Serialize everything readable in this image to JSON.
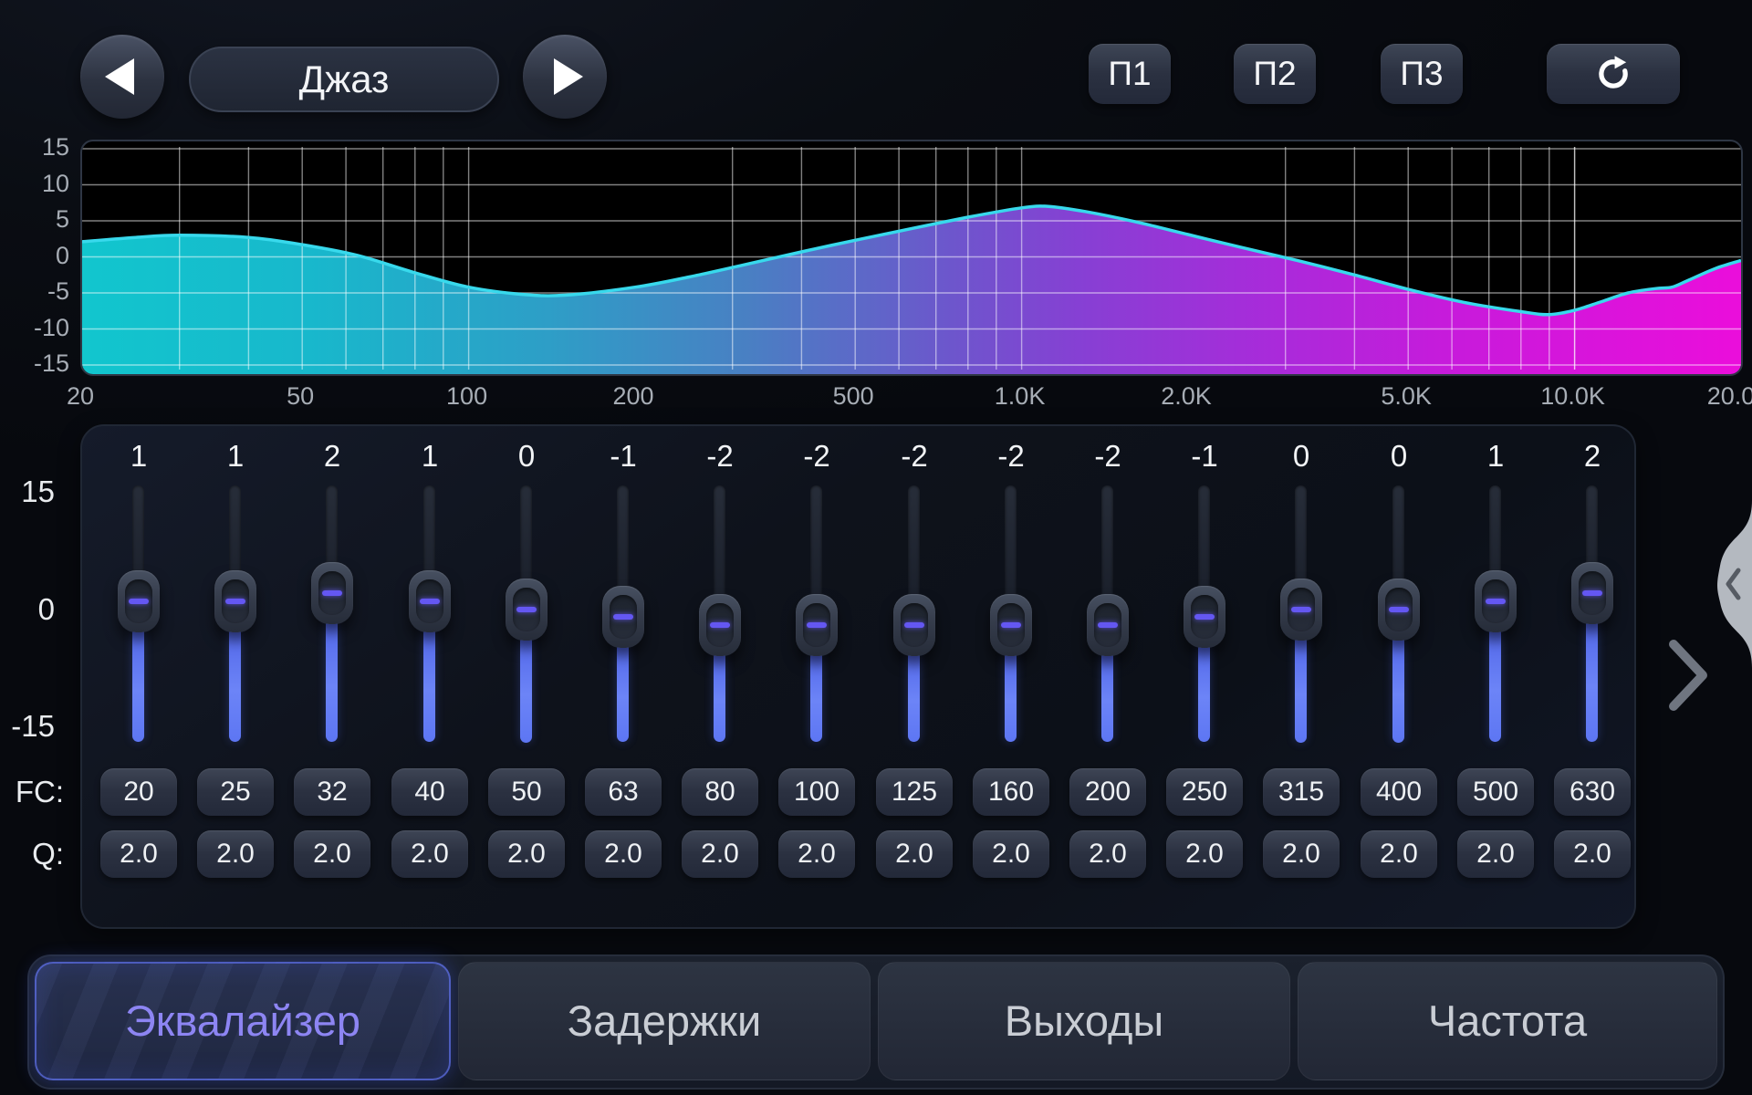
{
  "header": {
    "preset_prev_icon": "left-triangle-icon",
    "preset_name": "Джаз",
    "preset_next_icon": "right-triangle-icon",
    "preset_buttons": [
      "П1",
      "П2",
      "П3"
    ],
    "reset_icon": "reset-icon"
  },
  "chart_data": {
    "type": "area",
    "title": "",
    "x_scale": "log",
    "xlim": [
      20,
      20000
    ],
    "ylim": [
      -15,
      15
    ],
    "grid": true,
    "x_ticks": [
      "20",
      "50",
      "100",
      "200",
      "500",
      "1.0K",
      "2.0K",
      "5.0K",
      "10.0K",
      "20.0K"
    ],
    "x_tick_freqs": [
      20,
      50,
      100,
      200,
      500,
      1000,
      2000,
      5000,
      10000,
      20000
    ],
    "y_ticks": [
      15,
      10,
      5,
      0,
      -5,
      -10,
      -15
    ],
    "series_name": "eq-response-db",
    "points": [
      [
        20,
        2.1
      ],
      [
        25,
        2.7
      ],
      [
        30,
        3.0
      ],
      [
        40,
        2.7
      ],
      [
        50,
        1.7
      ],
      [
        63,
        0.2
      ],
      [
        80,
        -2.2
      ],
      [
        100,
        -4.2
      ],
      [
        125,
        -5.2
      ],
      [
        150,
        -5.3
      ],
      [
        200,
        -4.2
      ],
      [
        250,
        -2.8
      ],
      [
        315,
        -1.1
      ],
      [
        400,
        0.7
      ],
      [
        500,
        2.3
      ],
      [
        630,
        3.9
      ],
      [
        800,
        5.5
      ],
      [
        1000,
        6.8
      ],
      [
        1120,
        7.0
      ],
      [
        1300,
        6.3
      ],
      [
        1600,
        4.9
      ],
      [
        2000,
        3.1
      ],
      [
        2500,
        1.3
      ],
      [
        3150,
        -0.5
      ],
      [
        4000,
        -2.5
      ],
      [
        5000,
        -4.5
      ],
      [
        6300,
        -6.3
      ],
      [
        8000,
        -7.6
      ],
      [
        9000,
        -8.0
      ],
      [
        10000,
        -7.4
      ],
      [
        11200,
        -6.2
      ],
      [
        12500,
        -5.0
      ],
      [
        14000,
        -4.4
      ],
      [
        15000,
        -4.2
      ],
      [
        16000,
        -3.3
      ],
      [
        18000,
        -1.6
      ],
      [
        20000,
        -0.5
      ]
    ]
  },
  "eq": {
    "gain_axis_labels": [
      "15",
      "0",
      "-15"
    ],
    "gain_axis_values": [
      15,
      0,
      -15
    ],
    "fc_label": "FC:",
    "q_label": "Q:",
    "bands": [
      {
        "gain": 1,
        "fc": "20",
        "q": "2.0"
      },
      {
        "gain": 1,
        "fc": "25",
        "q": "2.0"
      },
      {
        "gain": 2,
        "fc": "32",
        "q": "2.0"
      },
      {
        "gain": 1,
        "fc": "40",
        "q": "2.0"
      },
      {
        "gain": 0,
        "fc": "50",
        "q": "2.0"
      },
      {
        "gain": -1,
        "fc": "63",
        "q": "2.0"
      },
      {
        "gain": -2,
        "fc": "80",
        "q": "2.0"
      },
      {
        "gain": -2,
        "fc": "100",
        "q": "2.0"
      },
      {
        "gain": -2,
        "fc": "125",
        "q": "2.0"
      },
      {
        "gain": -2,
        "fc": "160",
        "q": "2.0"
      },
      {
        "gain": -2,
        "fc": "200",
        "q": "2.0"
      },
      {
        "gain": -1,
        "fc": "250",
        "q": "2.0"
      },
      {
        "gain": 0,
        "fc": "315",
        "q": "2.0"
      },
      {
        "gain": 0,
        "fc": "400",
        "q": "2.0"
      },
      {
        "gain": 1,
        "fc": "500",
        "q": "2.0"
      },
      {
        "gain": 2,
        "fc": "630",
        "q": "2.0"
      }
    ],
    "more_bands_icon": "chevron-right-icon",
    "drawer_icon": "chevron-left-icon"
  },
  "tabs": [
    {
      "label": "Эквалайзер",
      "active": true
    },
    {
      "label": "Задержки",
      "active": false
    },
    {
      "label": "Выходы",
      "active": false
    },
    {
      "label": "Частота",
      "active": false
    }
  ],
  "colors": {
    "slider_fill_blue": "#5c76f4",
    "thumb_dash": "#6457f2",
    "curve_stroke": "#38d9ec",
    "area_gradient_left": "#12ccd4",
    "area_gradient_mid": "#8a42da",
    "area_gradient_right": "#f20ee2",
    "active_tab_text": "#8d85f3",
    "active_tab_border": "#5c6ee6",
    "chart_background": "#000000"
  }
}
